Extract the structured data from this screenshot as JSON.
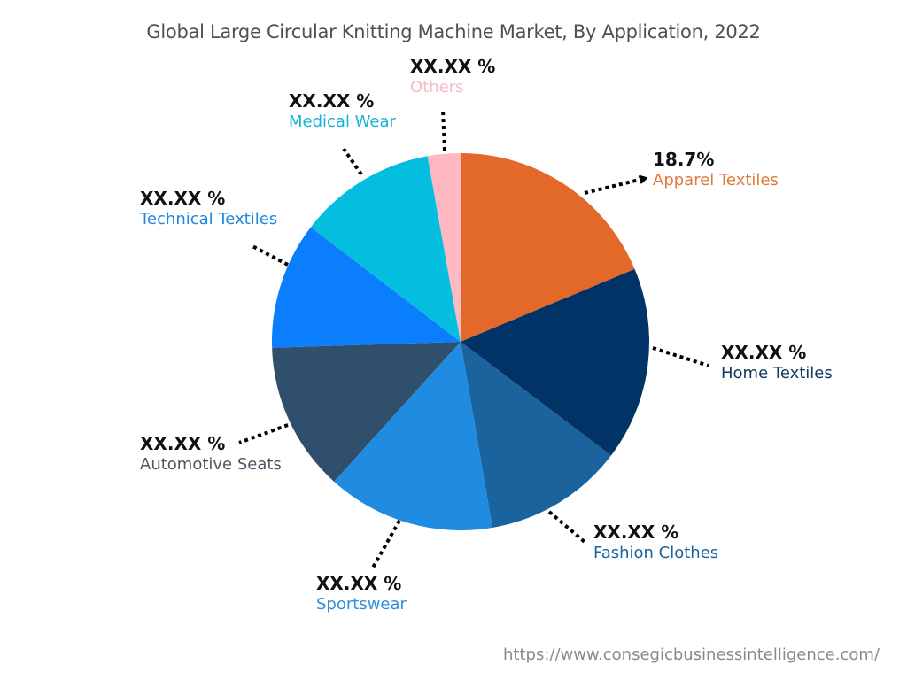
{
  "chart_data": {
    "type": "pie",
    "title": "Global Large Circular Knitting Machine Market, By Application, 2022",
    "start_angle": "12 o'clock, clockwise",
    "categories": [
      "Apparel Textiles",
      "Home Textiles",
      "Fashion Clothes",
      "Sportswear",
      "Automotive Seats",
      "Technical Textiles",
      "Medical Wear",
      "Others"
    ],
    "values": [
      18.7,
      16.6,
      12.0,
      14.4,
      12.8,
      10.9,
      11.8,
      2.8
    ],
    "value_labels": [
      "18.7%",
      "XX.XX %",
      "XX.XX %",
      "XX.XX %",
      "XX.XX %",
      "XX.XX %",
      "XX.XX %",
      "XX.XX %"
    ],
    "colors": [
      "#E2692A",
      "#023366",
      "#1A639D",
      "#1F8CE1",
      "#304F6C",
      "#0A7EFC",
      "#04BEE0",
      "#FDB8C1"
    ],
    "label_colors": [
      "#E0793C",
      "#0F3A64",
      "#1A639D",
      "#2F8FE0",
      "#4A5866",
      "#1F87E0",
      "#16B4D8",
      "#F7B9C4"
    ],
    "annotations": [
      "Apparel Textiles labeled 18.7% with arrow; other values masked as XX.XX %"
    ],
    "legend": "none (direct labels with dotted leader lines)"
  },
  "header": {
    "title": "Global Large Circular Knitting Machine Market, By Application, 2022"
  },
  "labels": [
    {
      "value": "18.7%",
      "name": "Apparel Textiles"
    },
    {
      "value": "XX.XX %",
      "name": "Home Textiles"
    },
    {
      "value": "XX.XX %",
      "name": "Fashion Clothes"
    },
    {
      "value": "XX.XX %",
      "name": "Sportswear"
    },
    {
      "value": "XX.XX %",
      "name": "Automotive Seats"
    },
    {
      "value": "XX.XX %",
      "name": "Technical Textiles"
    },
    {
      "value": "XX.XX %",
      "name": "Medical Wear"
    },
    {
      "value": "XX.XX %",
      "name": "Others"
    }
  ],
  "footer": {
    "source_url": "https://www.consegicbusinessintelligence.com/"
  }
}
